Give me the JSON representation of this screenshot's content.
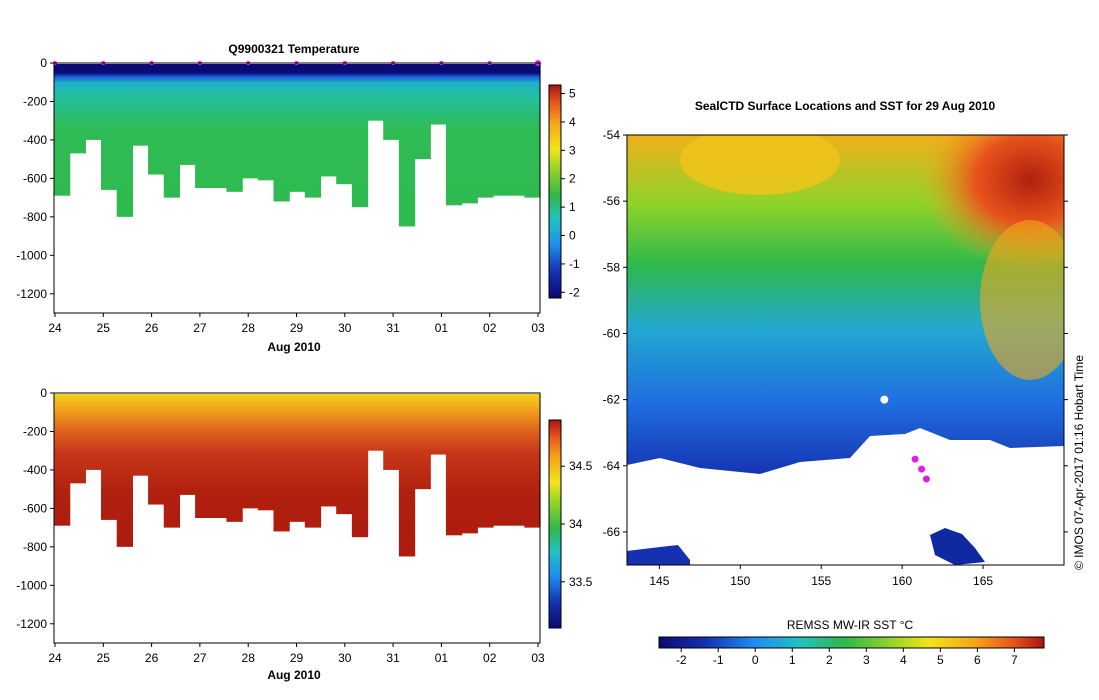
{
  "chart_data": [
    {
      "type": "heatmap",
      "title": "Q9900321  Temperature",
      "x_ticks": [
        "24",
        "25",
        "26",
        "27",
        "28",
        "29",
        "30",
        "31",
        "01",
        "02",
        "03"
      ],
      "xlabel": "Aug 2010",
      "y_ticks": [
        0,
        -200,
        -400,
        -600,
        -800,
        -1000,
        -1200
      ],
      "ylim": [
        -1300,
        0
      ],
      "colorbar_ticks": [
        5,
        4,
        3,
        2,
        1,
        0,
        -1,
        -2
      ],
      "colorbar_range": [
        -2.2,
        5.3
      ],
      "profile_max_depth": [
        -690,
        -470,
        -400,
        -660,
        -800,
        -430,
        -580,
        -700,
        -530,
        -650,
        -650,
        -670,
        -600,
        -610,
        -720,
        -670,
        -700,
        -590,
        -630,
        -750,
        -300,
        -400,
        -850,
        -500,
        -320,
        -740,
        -730,
        -700,
        -690,
        -690,
        -700
      ],
      "profile_markers_at_surface": 10
    },
    {
      "type": "heatmap",
      "title": "",
      "x_ticks": [
        "24",
        "25",
        "26",
        "27",
        "28",
        "29",
        "30",
        "31",
        "01",
        "02",
        "03"
      ],
      "xlabel": "Aug 2010",
      "y_ticks": [
        0,
        -200,
        -400,
        -600,
        -800,
        -1000,
        -1200
      ],
      "ylim": [
        -1300,
        0
      ],
      "colorbar_ticks": [
        34.5,
        34,
        33.5
      ],
      "colorbar_range": [
        33.1,
        34.9
      ],
      "profile_max_depth": [
        -690,
        -470,
        -400,
        -660,
        -800,
        -430,
        -580,
        -700,
        -530,
        -650,
        -650,
        -670,
        -600,
        -610,
        -720,
        -670,
        -700,
        -590,
        -630,
        -750,
        -300,
        -400,
        -850,
        -500,
        -320,
        -740,
        -730,
        -700,
        -690,
        -690,
        -700
      ]
    },
    {
      "type": "heatmap",
      "title": "SealCTD Surface Locations and SST for 29 Aug 2010",
      "x_ticks": [
        145,
        150,
        155,
        160,
        165
      ],
      "xlim": [
        143,
        170
      ],
      "y_ticks": [
        -54,
        -56,
        -58,
        -60,
        -62,
        -64,
        -66
      ],
      "ylim": [
        -67,
        -54
      ],
      "colorbar_label": "REMSS MW-IR SST °C",
      "colorbar_ticks": [
        -2,
        -1,
        0,
        1,
        2,
        3,
        4,
        5,
        6,
        7
      ],
      "colorbar_range": [
        -2.6,
        7.8
      ],
      "seal_locations": [
        [
          158.9,
          -62.0
        ],
        [
          161.2,
          -64.1
        ],
        [
          161.5,
          -64.4
        ],
        [
          160.8,
          -63.8
        ]
      ]
    }
  ],
  "credit": "© IMOS 07-Apr-2017 01:16 Hobart Time"
}
